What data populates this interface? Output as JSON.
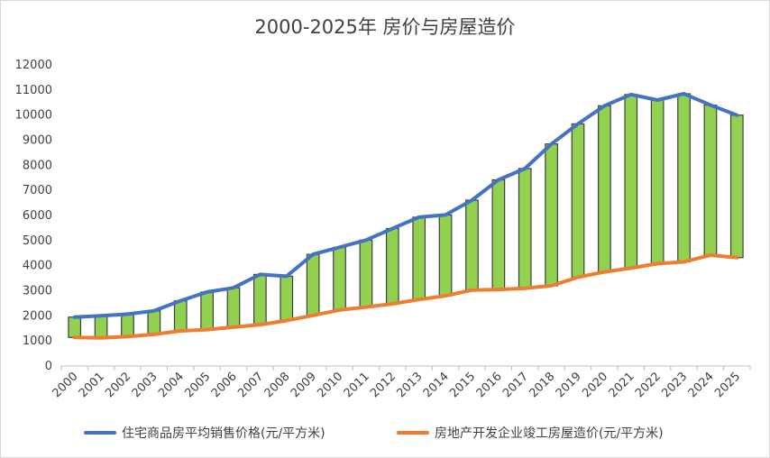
{
  "chart_data": {
    "type": "line",
    "title": "2000-2025年 房价与房屋造价",
    "xlabel": "",
    "ylabel": "",
    "ylim": [
      0,
      12000
    ],
    "yticks": [
      0,
      1000,
      2000,
      3000,
      4000,
      5000,
      6000,
      7000,
      8000,
      9000,
      10000,
      11000,
      12000
    ],
    "categories": [
      "2000",
      "2001",
      "2002",
      "2003",
      "2004",
      "2005",
      "2006",
      "2007",
      "2008",
      "2009",
      "2010",
      "2011",
      "2012",
      "2013",
      "2014",
      "2015",
      "2016",
      "2017",
      "2018",
      "2019",
      "2020",
      "2021",
      "2022",
      "2023",
      "2024",
      "2025"
    ],
    "series": [
      {
        "name": "住宅商品房平均销售价格(元/平方米)",
        "color": "#4472C4",
        "values": [
          1950,
          2000,
          2070,
          2200,
          2600,
          2950,
          3120,
          3650,
          3580,
          4450,
          4730,
          5020,
          5480,
          5930,
          6020,
          6610,
          7420,
          7870,
          8850,
          9650,
          10370,
          10820,
          10600,
          10850,
          10400,
          10000
        ]
      },
      {
        "name": "房地产开发企业竣工房屋造价(元/平方米)",
        "color": "#ED7D31",
        "values": [
          1140,
          1120,
          1180,
          1260,
          1400,
          1450,
          1550,
          1650,
          1810,
          2020,
          2230,
          2350,
          2480,
          2650,
          2800,
          3030,
          3050,
          3100,
          3200,
          3540,
          3750,
          3900,
          4080,
          4150,
          4420,
          4320
        ]
      }
    ],
    "updown_bars": {
      "color": "#92D050",
      "border": "#404040"
    },
    "legend_position": "bottom",
    "grid": false
  }
}
